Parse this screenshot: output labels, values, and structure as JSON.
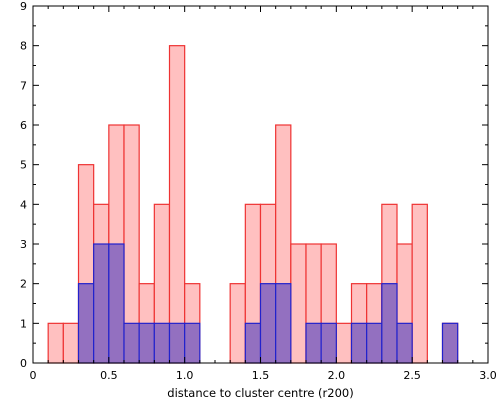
{
  "chart_data": {
    "type": "bar",
    "xlabel": "distance to cluster centre (r200)",
    "ylabel": "",
    "xlim": [
      0,
      3.0
    ],
    "ylim": [
      0,
      9
    ],
    "grid": false,
    "bin_width": 0.1,
    "x_tick_values": [
      0,
      0.5,
      1.0,
      1.5,
      2.0,
      2.5,
      3.0
    ],
    "x_ticks": [
      "0",
      "0.5",
      "1.0",
      "1.5",
      "2.0",
      "2.5",
      "3.0"
    ],
    "y_tick_values": [
      0,
      1,
      2,
      3,
      4,
      5,
      6,
      7,
      8,
      9
    ],
    "y_ticks": [
      "0",
      "1",
      "2",
      "3",
      "4",
      "5",
      "6",
      "7",
      "8",
      "9"
    ],
    "series": [
      {
        "fill": "#ffc0c0",
        "stroke": "#ee3333",
        "bins": [
          {
            "x": 0.1,
            "value": 1
          },
          {
            "x": 0.2,
            "value": 1
          },
          {
            "x": 0.3,
            "value": 5
          },
          {
            "x": 0.4,
            "value": 4
          },
          {
            "x": 0.5,
            "value": 6
          },
          {
            "x": 0.6,
            "value": 6
          },
          {
            "x": 0.7,
            "value": 2
          },
          {
            "x": 0.8,
            "value": 4
          },
          {
            "x": 0.9,
            "value": 8
          },
          {
            "x": 1.0,
            "value": 2
          },
          {
            "x": 1.3,
            "value": 2
          },
          {
            "x": 1.4,
            "value": 4
          },
          {
            "x": 1.5,
            "value": 4
          },
          {
            "x": 1.6,
            "value": 6
          },
          {
            "x": 1.7,
            "value": 3
          },
          {
            "x": 1.8,
            "value": 3
          },
          {
            "x": 1.9,
            "value": 3
          },
          {
            "x": 2.0,
            "value": 1
          },
          {
            "x": 2.1,
            "value": 2
          },
          {
            "x": 2.2,
            "value": 2
          },
          {
            "x": 2.3,
            "value": 4
          },
          {
            "x": 2.4,
            "value": 3
          },
          {
            "x": 2.5,
            "value": 4
          },
          {
            "x": 2.7,
            "value": 1
          }
        ]
      },
      {
        "fill": "#9370c0",
        "stroke": "#2222cc",
        "bins": [
          {
            "x": 0.3,
            "value": 2
          },
          {
            "x": 0.4,
            "value": 3
          },
          {
            "x": 0.5,
            "value": 3
          },
          {
            "x": 0.6,
            "value": 1
          },
          {
            "x": 0.7,
            "value": 1
          },
          {
            "x": 0.8,
            "value": 1
          },
          {
            "x": 0.9,
            "value": 1
          },
          {
            "x": 1.0,
            "value": 1
          },
          {
            "x": 1.4,
            "value": 1
          },
          {
            "x": 1.5,
            "value": 2
          },
          {
            "x": 1.6,
            "value": 2
          },
          {
            "x": 1.8,
            "value": 1
          },
          {
            "x": 1.9,
            "value": 1
          },
          {
            "x": 2.1,
            "value": 1
          },
          {
            "x": 2.2,
            "value": 1
          },
          {
            "x": 2.3,
            "value": 2
          },
          {
            "x": 2.4,
            "value": 1
          },
          {
            "x": 2.7,
            "value": 1
          }
        ]
      }
    ]
  }
}
